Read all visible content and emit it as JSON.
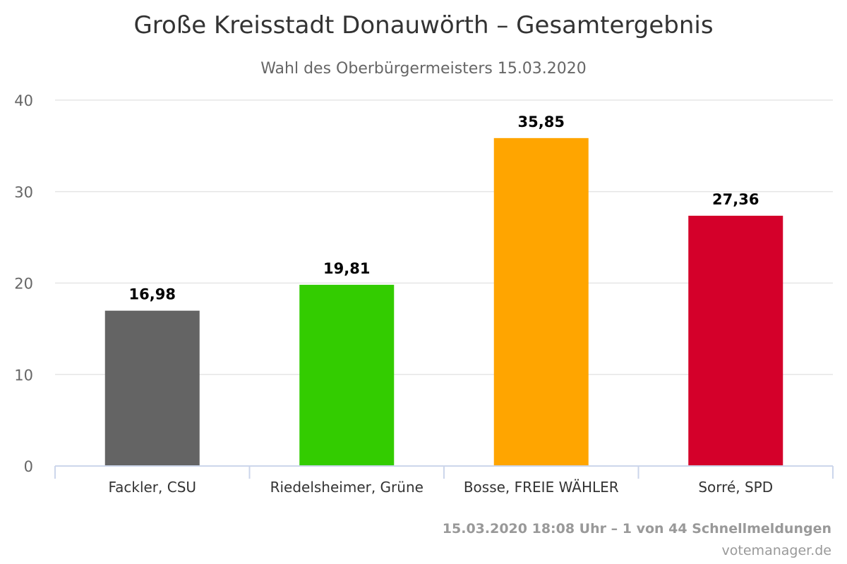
{
  "header": {
    "title": "Große Kreisstadt Donauwörth – Gesamtergebnis",
    "subtitle": "Wahl des Oberbürgermeisters 15.03.2020"
  },
  "chart_data": {
    "type": "bar",
    "title": "Große Kreisstadt Donauwörth – Gesamtergebnis",
    "subtitle": "Wahl des Oberbürgermeisters 15.03.2020",
    "categories": [
      "Fackler, CSU",
      "Riedelsheimer, Grüne",
      "Bosse, FREIE WÄHLER",
      "Sorré, SPD"
    ],
    "values": [
      16.98,
      19.81,
      35.85,
      27.36
    ],
    "data_labels": [
      "16,98",
      "19,81",
      "35,85",
      "27,36"
    ],
    "colors": [
      "#646464",
      "#33cc00",
      "#ffa500",
      "#d4002a"
    ],
    "ylim": [
      0,
      40
    ],
    "yticks": [
      0,
      10,
      20,
      30,
      40
    ],
    "xlabel": "",
    "ylabel": "",
    "grid": true,
    "legend": "none"
  },
  "footer": {
    "credit": "15.03.2020 18:08 Uhr – 1 von 44 Schnellmeldungen",
    "site": "votemanager.de"
  },
  "style": {
    "grid_color": "#e6e6e6",
    "axis_color": "#ccd6eb"
  }
}
